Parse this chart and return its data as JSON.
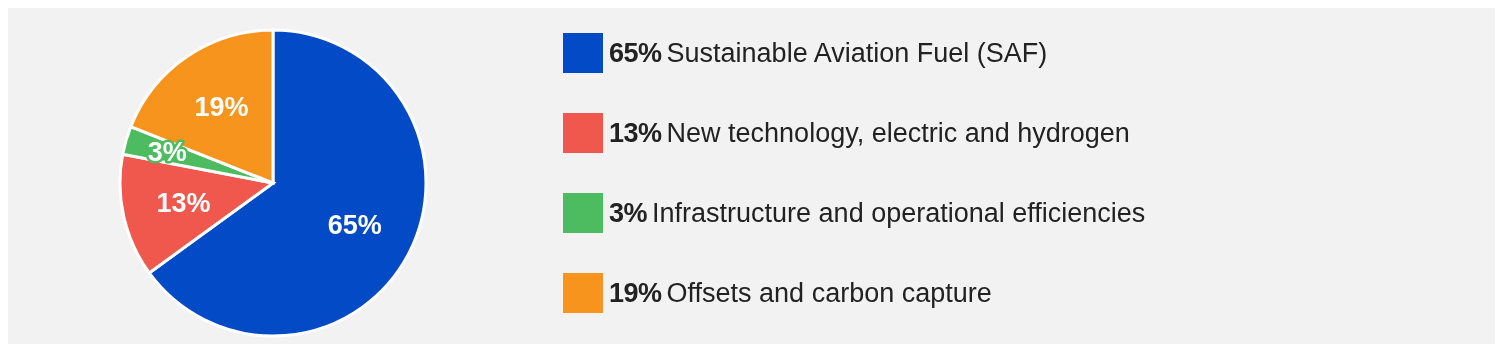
{
  "chart_data": {
    "type": "pie",
    "categories": [
      "Sustainable Aviation Fuel (SAF)",
      "New technology, electric and hydrogen",
      "Infrastructure and operational efficiencies",
      "Offsets and carbon capture"
    ],
    "values": [
      65,
      13,
      3,
      19
    ],
    "colors": [
      "#034ac7",
      "#f0584e",
      "#4dbb5f",
      "#f7941d"
    ],
    "value_labels": [
      "65%",
      "13%",
      "3%",
      "19%"
    ],
    "legend": "right"
  }
}
